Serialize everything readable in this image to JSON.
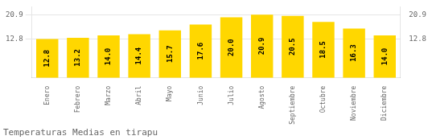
{
  "chart_data": {
    "type": "bar",
    "title": "Temperaturas Medias en tirapu",
    "categories": [
      "Enero",
      "Febrero",
      "Marzo",
      "Abril",
      "Mayo",
      "Junio",
      "Julio",
      "Agosto",
      "Septiembre",
      "Octubre",
      "Noviembre",
      "Diciembre"
    ],
    "values": [
      12.8,
      13.2,
      14.0,
      14.4,
      15.7,
      17.6,
      20.0,
      20.9,
      20.5,
      18.5,
      16.3,
      14.0
    ],
    "value_labels": [
      "12.8",
      "13.2",
      "14.0",
      "14.4",
      "15.7",
      "17.6",
      "20.0",
      "20.9",
      "20.5",
      "18.5",
      "16.3",
      "14.0"
    ],
    "color": "#FFD700",
    "ylim": [
      0,
      23.5
    ],
    "yticks": [
      12.8,
      20.9
    ],
    "y2lim": [
      0,
      23.5
    ],
    "y2ticks": [
      12.8,
      20.9
    ],
    "grid": true,
    "data_labels": true
  }
}
